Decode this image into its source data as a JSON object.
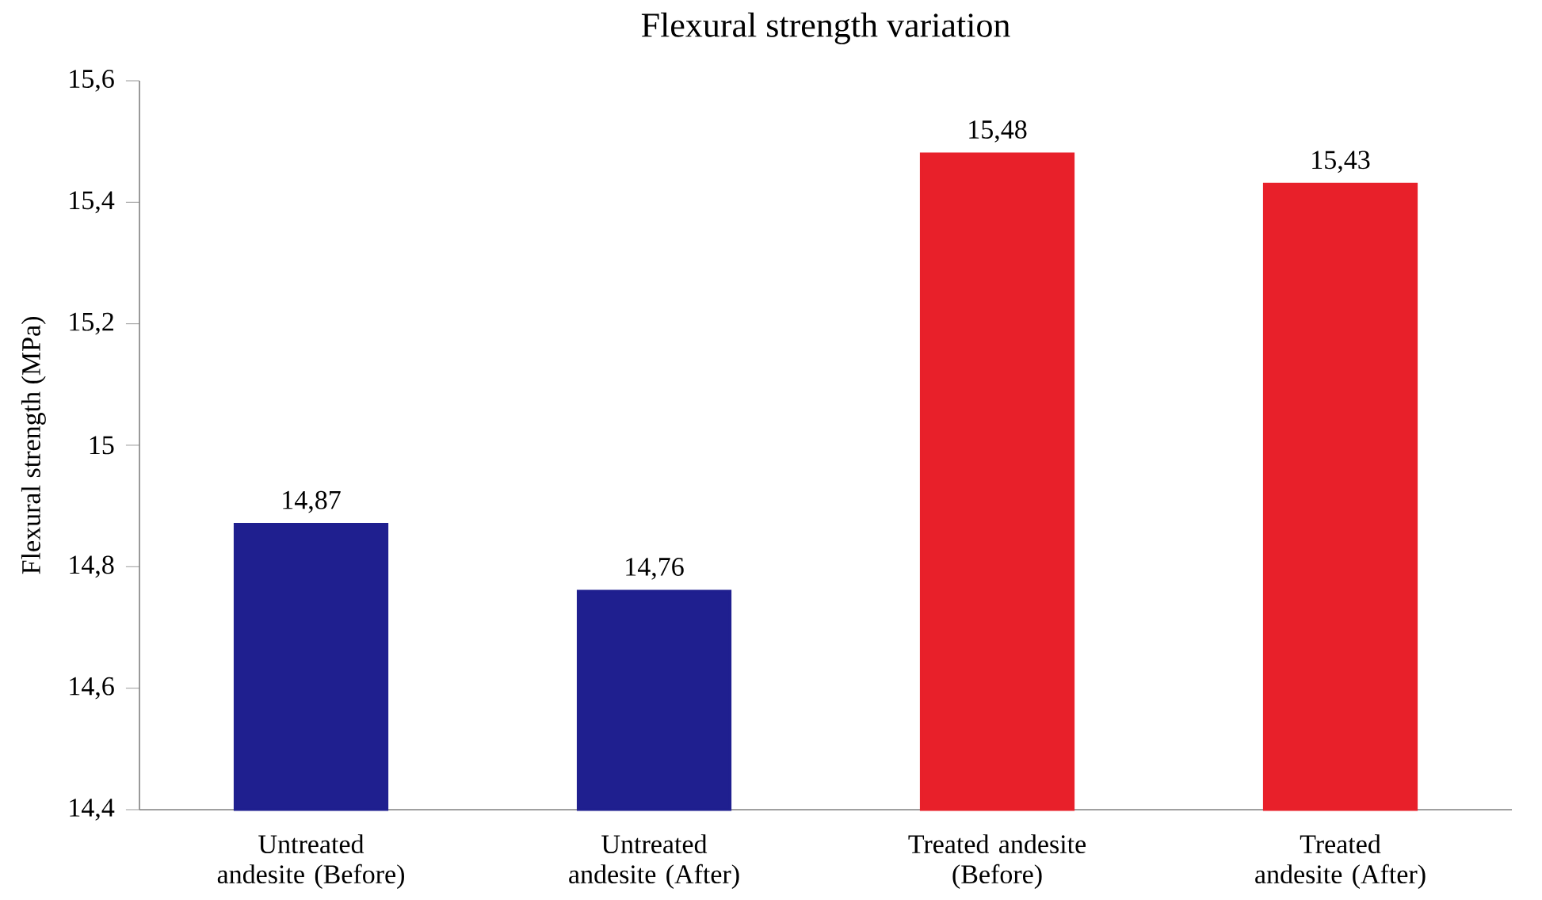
{
  "chart_data": {
    "type": "bar",
    "title": "Flexural strength variation",
    "ylabel": "Flexural strength (MPa)",
    "categories": [
      "Untreated andesite (Before)",
      "Untreated andesite (After)",
      "Treated andesite (Before)",
      "Treated andesite (After)"
    ],
    "values": [
      14.87,
      14.76,
      15.48,
      15.43
    ],
    "colors": [
      "#1f1f8f",
      "#1f1f8f",
      "#e8202a",
      "#e8202a"
    ],
    "value_labels": [
      "14,87",
      "14,76",
      "15,48",
      "15,43"
    ],
    "ylim": [
      14.4,
      15.6
    ],
    "grid": false,
    "yticks": [
      {
        "value": 14.4,
        "label": "14,4"
      },
      {
        "value": 14.6,
        "label": "14,6"
      },
      {
        "value": 14.8,
        "label": "14,8"
      },
      15,
      {
        "value": 15.2,
        "label": "15,2"
      },
      {
        "value": 15.4,
        "label": "15,4"
      },
      {
        "value": 15.6,
        "label": "15,6"
      }
    ]
  }
}
